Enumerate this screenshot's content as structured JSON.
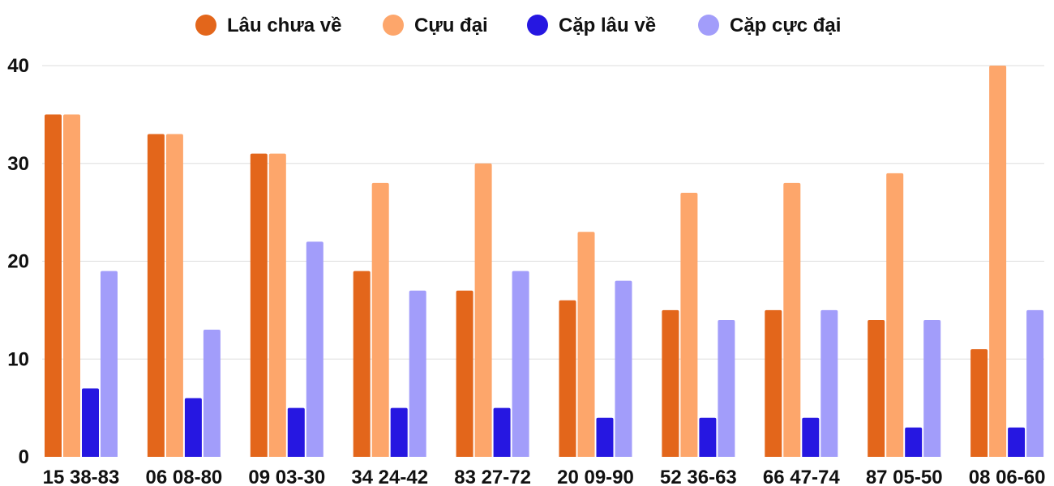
{
  "chart_data": {
    "type": "bar",
    "categories": [
      "15 38-83",
      "06 08-80",
      "09 03-30",
      "34 24-42",
      "83 27-72",
      "20 09-90",
      "52 36-63",
      "66 47-74",
      "87 05-50",
      "08 06-60"
    ],
    "series": [
      {
        "name": "Lâu chưa về",
        "color": "#e3661b",
        "values": [
          35,
          33,
          31,
          19,
          17,
          16,
          15,
          15,
          14,
          11
        ]
      },
      {
        "name": "Cựu đại",
        "color": "#fda66b",
        "values": [
          35,
          33,
          31,
          28,
          30,
          23,
          27,
          28,
          29,
          40
        ]
      },
      {
        "name": "Cặp lâu về",
        "color": "#2617e1",
        "values": [
          7,
          6,
          5,
          5,
          5,
          4,
          4,
          4,
          3,
          3
        ]
      },
      {
        "name": "Cặp cực đại",
        "color": "#a29dfa",
        "values": [
          19,
          13,
          22,
          17,
          19,
          18,
          14,
          15,
          14,
          15
        ]
      }
    ],
    "yticks": [
      0,
      10,
      20,
      30,
      40
    ],
    "ylim": [
      0,
      40
    ],
    "grid": true,
    "legend_position": "top"
  }
}
